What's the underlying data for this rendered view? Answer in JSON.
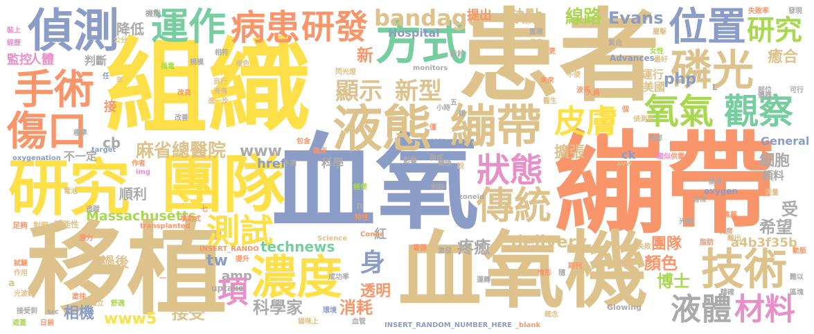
{
  "colors": {
    "background": "#ffffff",
    "palette": {
      "yellow": "#fde047",
      "tan": "#dec28c",
      "orange": "#f8956a",
      "slate": "#8b9cc6",
      "green": "#75cda0",
      "lime": "#a8d84e",
      "pink": "#e98fc8",
      "grey": "#aaaaaa"
    }
  },
  "words": [
    {
      "id": "w1",
      "text": "組織",
      "color": "yellow"
    },
    {
      "id": "w2",
      "text": "患者",
      "color": "tan"
    },
    {
      "id": "w3",
      "text": "繃帶",
      "color": "orange"
    },
    {
      "id": "w4",
      "text": "血氧",
      "color": "slate"
    },
    {
      "id": "w5",
      "text": "血氧機",
      "color": "tan"
    },
    {
      "id": "w6",
      "text": "移植",
      "color": "tan"
    },
    {
      "id": "w7",
      "text": "團隊",
      "color": "yellow"
    },
    {
      "id": "w8",
      "text": "研究",
      "color": "yellow"
    },
    {
      "id": "w9",
      "text": "偵測",
      "color": "slate"
    },
    {
      "id": "w10",
      "text": "運作",
      "color": "green"
    },
    {
      "id": "w11",
      "text": "病患",
      "color": "orange"
    },
    {
      "id": "w12",
      "text": "研發",
      "color": "orange"
    },
    {
      "id": "w13",
      "text": "方式",
      "color": "green"
    },
    {
      "id": "w14",
      "text": "位置",
      "color": "slate"
    },
    {
      "id": "w15",
      "text": "磷光",
      "color": "tan"
    },
    {
      "id": "w16",
      "text": "研究",
      "color": "lime"
    },
    {
      "id": "w17",
      "text": "手術",
      "color": "orange"
    },
    {
      "id": "w18",
      "text": "傷口",
      "color": "orange"
    },
    {
      "id": "w19",
      "text": "液態",
      "color": "tan"
    },
    {
      "id": "w20",
      "text": "繃帶",
      "color": "tan"
    },
    {
      "id": "w21",
      "text": "氧氣",
      "color": "lime"
    },
    {
      "id": "w22",
      "text": "觀察",
      "color": "green"
    },
    {
      "id": "w23",
      "text": "皮膚",
      "color": "yellow"
    },
    {
      "id": "w24",
      "text": "狀態",
      "color": "pink"
    },
    {
      "id": "w25",
      "text": "傳統",
      "color": "tan"
    },
    {
      "id": "w26",
      "text": "濃度",
      "color": "yellow"
    },
    {
      "id": "w27",
      "text": "技術",
      "color": "tan"
    },
    {
      "id": "w28",
      "text": "液體",
      "color": "grey"
    },
    {
      "id": "w29",
      "text": "材料",
      "color": "pink"
    },
    {
      "id": "w30",
      "text": "測試",
      "color": "yellow"
    },
    {
      "id": "w31",
      "text": "麻省總醫院",
      "color": "tan"
    },
    {
      "id": "w32",
      "text": "顯示",
      "color": "tan"
    },
    {
      "id": "w33",
      "text": "新型",
      "color": "tan"
    },
    {
      "id": "w34",
      "text": "bandage",
      "color": "tan"
    },
    {
      "id": "w35",
      "text": "缺點",
      "color": "tan"
    },
    {
      "id": "w36",
      "text": "線路",
      "color": "lime"
    },
    {
      "id": "w37",
      "text": "Evans",
      "color": "slate"
    },
    {
      "id": "w38",
      "text": "Hospital",
      "color": "slate"
    },
    {
      "id": "w39",
      "text": "technews",
      "color": "green"
    },
    {
      "id": "w40",
      "text": "delivery",
      "color": "tan"
    },
    {
      "id": "w41",
      "text": "Massachusetts",
      "color": "lime"
    },
    {
      "id": "w42",
      "text": "www5",
      "color": "yellow"
    },
    {
      "id": "w43",
      "text": "www",
      "color": "grey"
    },
    {
      "id": "w44",
      "text": "href",
      "color": "slate"
    },
    {
      "id": "w45",
      "text": "amp",
      "color": "grey"
    },
    {
      "id": "w46",
      "text": "tw",
      "color": "slate"
    },
    {
      "id": "w47",
      "text": "cb",
      "color": "grey"
    },
    {
      "id": "w48",
      "text": "php",
      "color": "slate"
    },
    {
      "id": "w49",
      "text": "ck",
      "color": "slate"
    },
    {
      "id": "w50",
      "text": "a4b3f35b",
      "color": "tan"
    },
    {
      "id": "w51",
      "text": "科學家",
      "color": "grey"
    },
    {
      "id": "w52",
      "text": "消耗",
      "color": "orange"
    },
    {
      "id": "w53",
      "text": "接受",
      "color": "tan"
    },
    {
      "id": "w54",
      "text": "相機",
      "color": "slate"
    },
    {
      "id": "w55",
      "text": "透明",
      "color": "orange"
    },
    {
      "id": "w56",
      "text": "顏色",
      "color": "orange"
    },
    {
      "id": "w57",
      "text": "博士",
      "color": "lime"
    },
    {
      "id": "w58",
      "text": "團隊",
      "color": "orange"
    },
    {
      "id": "w59",
      "text": "疼癒",
      "color": "grey"
    },
    {
      "id": "w60",
      "text": "身",
      "color": "slate"
    },
    {
      "id": "w61",
      "text": "項",
      "color": "pink"
    },
    {
      "id": "w62",
      "text": "新",
      "color": "orange"
    },
    {
      "id": "w63",
      "text": "擴張",
      "color": "tan"
    },
    {
      "id": "w64",
      "text": "細胞",
      "color": "grey"
    },
    {
      "id": "w65",
      "text": "希望",
      "color": "grey"
    },
    {
      "id": "w66",
      "text": "受",
      "color": "grey"
    },
    {
      "id": "w67",
      "text": "順利",
      "color": "grey"
    },
    {
      "id": "w68",
      "text": "過後",
      "color": "tan"
    },
    {
      "id": "w69",
      "text": "人體",
      "color": "pink"
    },
    {
      "id": "w70",
      "text": "監控",
      "color": "pink"
    },
    {
      "id": "w71",
      "text": "判斷",
      "color": "grey"
    },
    {
      "id": "w72",
      "text": "降低",
      "color": "grey"
    },
    {
      "id": "w73",
      "text": "提出",
      "color": "orange"
    },
    {
      "id": "w74",
      "text": "不一定",
      "color": "grey"
    },
    {
      "id": "w75",
      "text": "運行",
      "color": "tan"
    },
    {
      "id": "w76",
      "text": "美國",
      "color": "tan"
    },
    {
      "id": "w77",
      "text": "癒合",
      "color": "tan"
    },
    {
      "id": "w78",
      "text": "General",
      "color": "slate"
    },
    {
      "id": "w79",
      "text": "oxygen",
      "color": "slate"
    },
    {
      "id": "w80",
      "text": "科學",
      "color": "grey"
    },
    {
      "id": "w81",
      "text": "接",
      "color": "orange"
    },
    {
      "id": "w82",
      "text": "紅",
      "color": "grey"
    },
    {
      "id": "w83",
      "text": "機能",
      "color": "grey"
    },
    {
      "id": "w84",
      "text": "顏料",
      "color": "grey"
    },
    {
      "id": "w85",
      "text": "monitors",
      "color": "grey"
    },
    {
      "id": "w86",
      "text": "oxygenation",
      "color": "slate"
    },
    {
      "id": "w87",
      "text": "target",
      "color": "slate"
    },
    {
      "id": "w88",
      "text": "uptake",
      "color": "grey"
    },
    {
      "id": "w89",
      "text": "INSERT_RANDO",
      "color": "orange"
    },
    {
      "id": "w90",
      "text": "INSERT_RANDOM_NUMBER_HERE",
      "color": "slate"
    },
    {
      "id": "w91",
      "text": "Science",
      "color": "tan"
    },
    {
      "id": "w92",
      "text": "Advances",
      "color": "slate"
    },
    {
      "id": "w93",
      "text": "Glowing",
      "color": "grey"
    },
    {
      "id": "w94",
      "text": "_blank",
      "color": "orange"
    },
    {
      "id": "w95",
      "text": "Conor",
      "color": "orange"
    },
    {
      "id": "w96",
      "text": "zoneid",
      "color": "grey"
    },
    {
      "id": "w97",
      "text": "avw",
      "color": "tan"
    },
    {
      "id": "w98",
      "text": "transplanted",
      "color": "orange"
    },
    {
      "id": "w99",
      "text": "src",
      "color": "grey"
    },
    {
      "id": "w100",
      "text": "img",
      "color": "pink"
    },
    {
      "id": "w101",
      "text": "作者",
      "color": "orange"
    },
    {
      "id": "w102",
      "text": "可能性",
      "color": "tan"
    },
    {
      "id": "w103",
      "text": "噴劑式",
      "color": "orange"
    },
    {
      "id": "w104",
      "text": "足夠",
      "color": "orange"
    },
    {
      "id": "w105",
      "text": "對照",
      "color": "tan"
    },
    {
      "id": "w106",
      "text": "潛力",
      "color": "orange"
    },
    {
      "id": "w107",
      "text": "電池",
      "color": "tan"
    },
    {
      "id": "w108",
      "text": "試驗",
      "color": "orange"
    },
    {
      "id": "w109",
      "text": "作用",
      "color": "tan"
    },
    {
      "id": "w110",
      "text": "光波輸",
      "color": "tan"
    },
    {
      "id": "w111",
      "text": "接受到",
      "color": "grey"
    },
    {
      "id": "w112",
      "text": "塗抹",
      "color": "orange"
    },
    {
      "id": "w113",
      "text": "遮蓋",
      "color": "lime"
    },
    {
      "id": "w114",
      "text": "日前",
      "color": "orange"
    },
    {
      "id": "w115",
      "text": "七",
      "color": "orange"
    },
    {
      "id": "w116",
      "text": "提升",
      "color": "orange"
    },
    {
      "id": "w117",
      "text": "獨立",
      "color": "tan"
    },
    {
      "id": "w118",
      "text": "舒適",
      "color": "lime"
    },
    {
      "id": "w119",
      "text": "環境",
      "color": "slate"
    },
    {
      "id": "w120",
      "text": "電器",
      "color": "orange"
    },
    {
      "id": "w121",
      "text": "期刊",
      "color": "orange"
    },
    {
      "id": "w122",
      "text": "情形",
      "color": "orange"
    },
    {
      "id": "w123",
      "text": "測量",
      "color": "tan"
    },
    {
      "id": "w124",
      "text": "發表",
      "color": "grey"
    },
    {
      "id": "w125",
      "text": "進展",
      "color": "orange"
    },
    {
      "id": "w126",
      "text": "輸出",
      "color": "tan"
    },
    {
      "id": "w127",
      "text": "動脈",
      "color": "orange"
    },
    {
      "id": "w128",
      "text": "難以",
      "color": "grey"
    },
    {
      "id": "w129",
      "text": "區塊",
      "color": "grey"
    },
    {
      "id": "w130",
      "text": "精確",
      "color": "grey"
    },
    {
      "id": "w131",
      "text": "乳房",
      "color": "orange"
    },
    {
      "id": "w132",
      "text": "失敗率",
      "color": "orange"
    },
    {
      "id": "w133",
      "text": "發現",
      "color": "grey"
    },
    {
      "id": "w134",
      "text": "裝上",
      "color": "pink"
    },
    {
      "id": "w135",
      "text": "經歷",
      "color": "pink"
    },
    {
      "id": "w136",
      "text": "儀器",
      "color": "grey"
    },
    {
      "id": "w137",
      "text": "最好",
      "color": "tan"
    },
    {
      "id": "w138",
      "text": "女性",
      "color": "lime"
    },
    {
      "id": "w139",
      "text": "不便",
      "color": "tan"
    },
    {
      "id": "w140",
      "text": "未來",
      "color": "orange"
    },
    {
      "id": "w141",
      "text": "部位",
      "color": "grey"
    },
    {
      "id": "w142",
      "text": "可行",
      "color": "grey"
    },
    {
      "id": "w143",
      "text": "人員",
      "color": "orange"
    },
    {
      "id": "w144",
      "text": "醫生",
      "color": "tan"
    },
    {
      "id": "w145",
      "text": "成功率",
      "color": "grey"
    },
    {
      "id": "w146",
      "text": "閃光燈",
      "color": "tan"
    },
    {
      "id": "w147",
      "text": "小時",
      "color": "grey"
    },
    {
      "id": "w148",
      "text": "標準",
      "color": "grey"
    },
    {
      "id": "w149",
      "text": "改善",
      "color": "grey"
    },
    {
      "id": "w150",
      "text": "改良",
      "color": "orange"
    },
    {
      "id": "w151",
      "text": "自行",
      "color": "tan"
    },
    {
      "id": "w152",
      "text": "燙傷",
      "color": "tan"
    },
    {
      "id": "w153",
      "text": "進一步",
      "color": "tan"
    },
    {
      "id": "w154",
      "text": "公分",
      "color": "tan"
    },
    {
      "id": "w155",
      "text": "相符",
      "color": "grey"
    },
    {
      "id": "w156",
      "text": "穩色",
      "color": "tan"
    },
    {
      "id": "w157",
      "text": "規模",
      "color": "grey"
    },
    {
      "id": "w158",
      "text": "插電",
      "color": "lime"
    },
    {
      "id": "w159",
      "text": "設計",
      "color": "grey"
    },
    {
      "id": "w160",
      "text": "缺氧",
      "color": "slate"
    },
    {
      "id": "w161",
      "text": "長直",
      "color": "tan"
    },
    {
      "id": "w162",
      "text": "重建",
      "color": "grey"
    },
    {
      "id": "w163",
      "text": "層擊",
      "color": "tan"
    },
    {
      "id": "w164",
      "text": "轉換",
      "color": "grey"
    },
    {
      "id": "w165",
      "text": "特性",
      "color": "orange"
    },
    {
      "id": "w166",
      "text": "製成",
      "color": "grey"
    },
    {
      "id": "w167",
      "text": "影響",
      "color": "grey"
    },
    {
      "id": "w168",
      "text": "臨床",
      "color": "orange"
    },
    {
      "id": "w169",
      "text": "包含",
      "color": "orange"
    },
    {
      "id": "w170",
      "text": "不適",
      "color": "grey"
    },
    {
      "id": "w171",
      "text": "輕便",
      "color": "lime"
    },
    {
      "id": "w172",
      "text": "剩餘",
      "color": "grey"
    },
    {
      "id": "w173",
      "text": "類似",
      "color": "pink"
    },
    {
      "id": "w174",
      "text": "供電",
      "color": "orange"
    },
    {
      "id": "w175",
      "text": "音深",
      "color": "grey"
    },
    {
      "id": "w176",
      "text": "患部",
      "color": "grey"
    },
    {
      "id": "w177",
      "text": "偵測到",
      "color": "tan"
    },
    {
      "id": "w178",
      "text": "光極",
      "color": "grey"
    },
    {
      "id": "w179",
      "text": "脂肪",
      "color": "orange"
    },
    {
      "id": "w180",
      "text": "失敗",
      "color": "tan"
    },
    {
      "id": "w181",
      "text": "概念",
      "color": "tan"
    },
    {
      "id": "w182",
      "text": "運轉",
      "color": "grey"
    },
    {
      "id": "w183",
      "text": "激發",
      "color": "grey"
    },
    {
      "id": "w184",
      "text": "說",
      "color": "tan"
    },
    {
      "id": "w185",
      "text": "僅",
      "color": "orange"
    },
    {
      "id": "w186",
      "text": "任",
      "color": "slate"
    },
    {
      "id": "w187",
      "text": "年",
      "color": "tan"
    },
    {
      "id": "w188",
      "text": "錄",
      "color": "grey"
    },
    {
      "id": "w189",
      "text": "五",
      "color": "grey"
    },
    {
      "id": "w190",
      "text": "更",
      "color": "orange"
    },
    {
      "id": "w191",
      "text": "個",
      "color": "orange"
    },
    {
      "id": "w192",
      "text": "氣合",
      "color": "grey"
    },
    {
      "id": "w193",
      "text": "追蹤",
      "color": "grey"
    },
    {
      "id": "w194",
      "text": "血管",
      "color": "grey"
    },
    {
      "id": "w195",
      "text": "貓咪上",
      "color": "tan"
    },
    {
      "id": "w196",
      "text": "一",
      "color": "orange"
    },
    {
      "id": "w197",
      "text": "n",
      "color": "grey"
    },
    {
      "id": "w198",
      "text": "a",
      "color": "tan"
    },
    {
      "id": "w199",
      "text": "L",
      "color": "grey"
    },
    {
      "id": "w200",
      "text": "隨",
      "color": "grey"
    },
    {
      "id": "w201",
      "text": "波長",
      "color": "orange"
    }
  ]
}
